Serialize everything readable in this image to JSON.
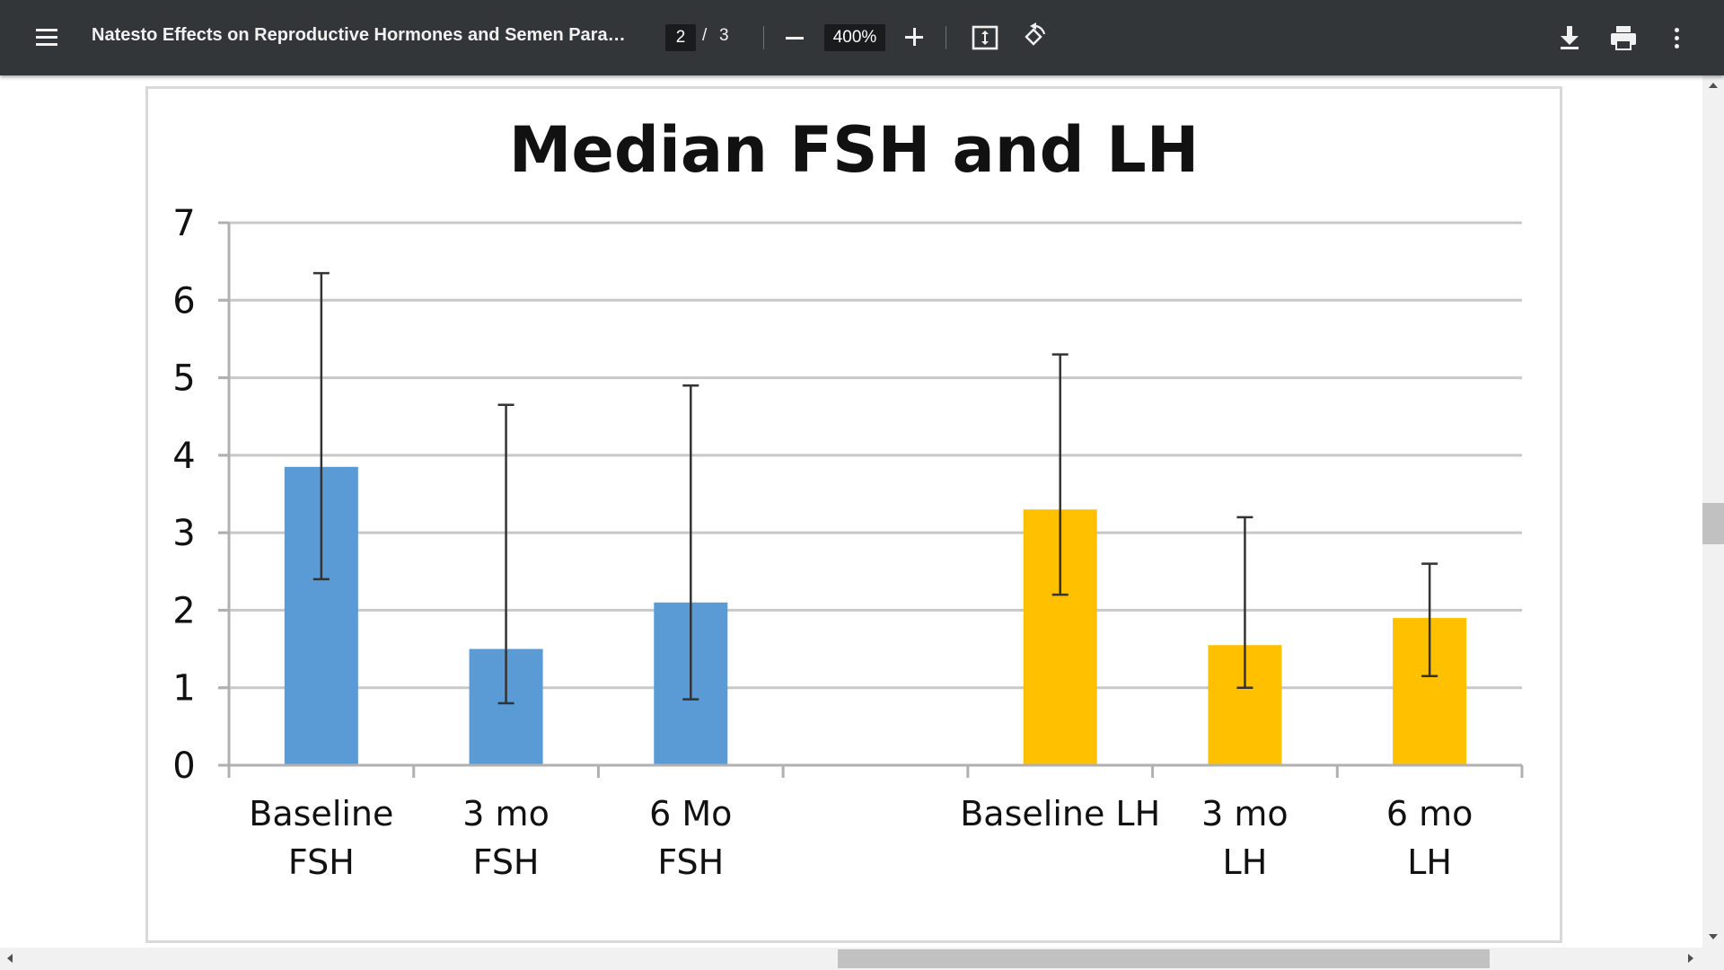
{
  "toolbar": {
    "title": "Natesto Effects on Reproductive Hormones and Semen Parame...",
    "page_current": "2",
    "page_separator": "/",
    "page_total": "3",
    "zoom": "400%",
    "icons": [
      "menu-icon",
      "zoom-out-icon",
      "zoom-in-icon",
      "fit-page-icon",
      "rotate-icon",
      "download-icon",
      "print-icon",
      "more-vert-icon"
    ]
  },
  "colors": {
    "toolbar_bg": "#323639",
    "fsh_bar": "#5b9bd5",
    "lh_bar": "#ffc000"
  },
  "chart_data": {
    "type": "bar",
    "title": "Median FSH and LH",
    "xlabel": "",
    "ylabel": "",
    "ylim": [
      0,
      7
    ],
    "yticks": [
      "0",
      "1",
      "2",
      "3",
      "4",
      "5",
      "6",
      "7"
    ],
    "grid": true,
    "legend": "none",
    "categories": [
      [
        "Baseline",
        "FSH"
      ],
      [
        "3 mo",
        "FSH"
      ],
      [
        "6 Mo",
        "FSH"
      ],
      [],
      [
        "Baseline LH"
      ],
      [
        "3 mo",
        "LH"
      ],
      [
        "6 mo",
        "LH"
      ]
    ],
    "values": [
      3.85,
      1.5,
      2.1,
      null,
      3.3,
      1.55,
      1.9
    ],
    "error_low": [
      2.4,
      0.8,
      0.85,
      null,
      2.2,
      1.0,
      1.15
    ],
    "error_high": [
      6.35,
      4.65,
      4.9,
      null,
      5.3,
      3.2,
      2.6
    ],
    "bar_colors": [
      "#5b9bd5",
      "#5b9bd5",
      "#5b9bd5",
      null,
      "#ffc000",
      "#ffc000",
      "#ffc000"
    ]
  }
}
